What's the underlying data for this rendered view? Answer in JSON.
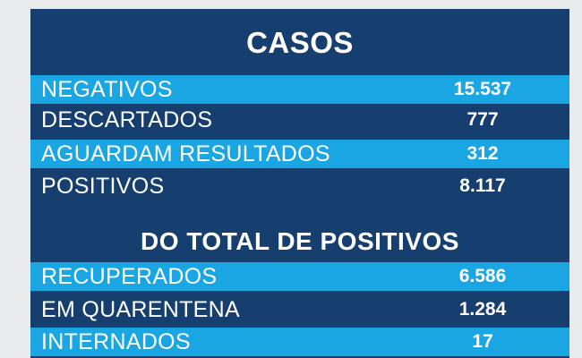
{
  "casos": {
    "title": "CASOS",
    "rows": [
      {
        "label": "NEGATIVOS",
        "value": "15.537"
      },
      {
        "label": "DESCARTADOS",
        "value": "777"
      },
      {
        "label": "AGUARDAM RESULTADOS",
        "value": "312"
      },
      {
        "label": "POSITIVOS",
        "value": "8.117"
      }
    ]
  },
  "positivos": {
    "title": "DO TOTAL DE POSITIVOS",
    "rows": [
      {
        "label": "RECUPERADOS",
        "value": "6.586"
      },
      {
        "label": "EM QUARENTENA",
        "value": "1.284"
      },
      {
        "label": "INTERNADOS",
        "value": "17"
      }
    ]
  },
  "colors": {
    "dark_blue": "#163f70",
    "light_blue": "#1aa5e3",
    "background": "#e9eaec"
  }
}
